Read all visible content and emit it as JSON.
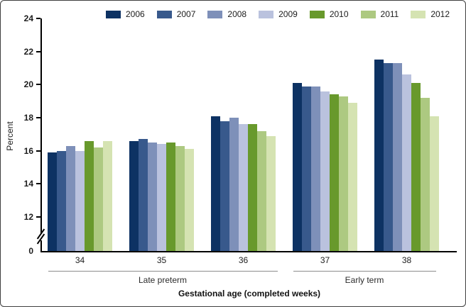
{
  "figure": {
    "group_brackets": [
      {
        "label": "Late preterm",
        "from_category": "34",
        "to_category": "36"
      },
      {
        "label": "Early term",
        "from_category": "37",
        "to_category": "38"
      }
    ]
  },
  "chart_data": {
    "type": "bar",
    "title": "",
    "xlabel": "Gestational age (completed weeks)",
    "ylabel": "Percent",
    "categories": [
      "34",
      "35",
      "36",
      "37",
      "38"
    ],
    "series": [
      {
        "name": "2006",
        "color": "#0d3263",
        "values": [
          15.9,
          16.6,
          18.1,
          20.1,
          21.5
        ]
      },
      {
        "name": "2007",
        "color": "#38598c",
        "values": [
          16.0,
          16.7,
          17.8,
          19.9,
          21.3
        ]
      },
      {
        "name": "2008",
        "color": "#7e90b9",
        "values": [
          16.3,
          16.5,
          18.0,
          19.9,
          21.3
        ]
      },
      {
        "name": "2009",
        "color": "#bac2de",
        "values": [
          16.0,
          16.4,
          17.6,
          19.6,
          20.6
        ]
      },
      {
        "name": "2010",
        "color": "#68992c",
        "values": [
          16.6,
          16.5,
          17.6,
          19.4,
          20.1
        ]
      },
      {
        "name": "2011",
        "color": "#adc981",
        "values": [
          16.2,
          16.3,
          17.2,
          19.3,
          19.2
        ]
      },
      {
        "name": "2012",
        "color": "#d5e3b2",
        "values": [
          16.6,
          16.1,
          16.9,
          18.9,
          18.1
        ]
      }
    ],
    "ylim": [
      0,
      24
    ],
    "y_ticks": [
      24,
      22,
      20,
      18,
      16,
      14,
      12,
      0
    ],
    "axis_break_between": [
      0,
      12
    ],
    "legend_position": "top",
    "grid": false
  }
}
